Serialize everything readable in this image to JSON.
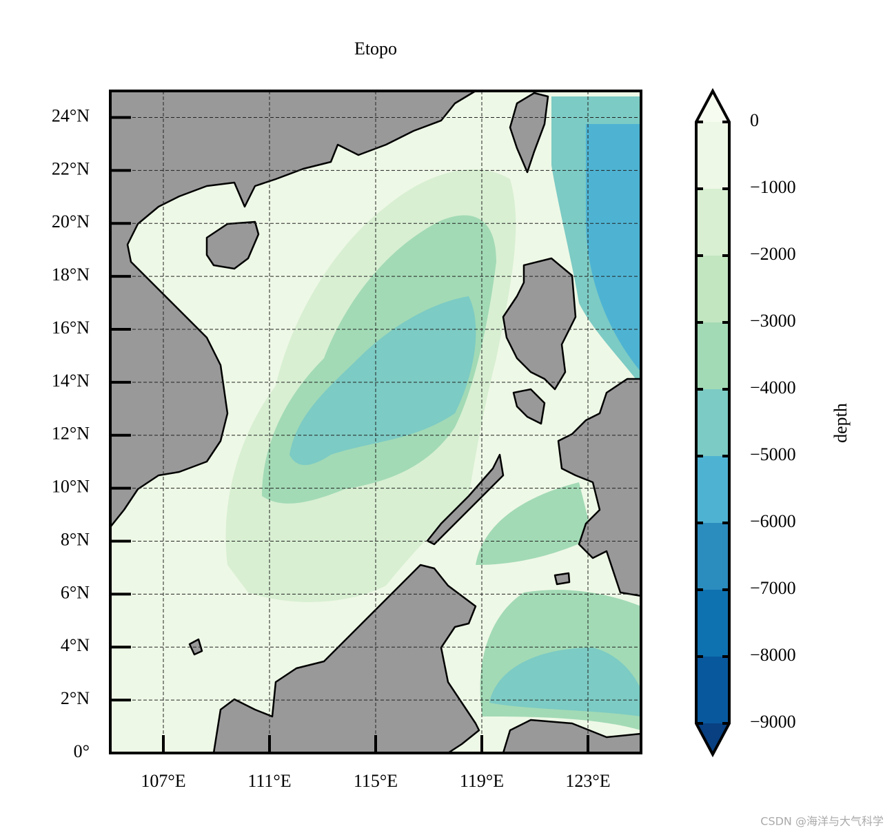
{
  "chart_data": {
    "type": "contourf-map",
    "title": "Etopo",
    "xlim": [
      105,
      125
    ],
    "ylim": [
      0,
      25
    ],
    "xticks": [
      {
        "value": 107,
        "label": "107°E"
      },
      {
        "value": 111,
        "label": "111°E"
      },
      {
        "value": 115,
        "label": "115°E"
      },
      {
        "value": 119,
        "label": "119°E"
      },
      {
        "value": 123,
        "label": "123°E"
      }
    ],
    "yticks": [
      {
        "value": 0,
        "label": "0°"
      },
      {
        "value": 2,
        "label": "2°N"
      },
      {
        "value": 4,
        "label": "4°N"
      },
      {
        "value": 6,
        "label": "6°N"
      },
      {
        "value": 8,
        "label": "8°N"
      },
      {
        "value": 10,
        "label": "10°N"
      },
      {
        "value": 12,
        "label": "12°N"
      },
      {
        "value": 14,
        "label": "14°N"
      },
      {
        "value": 16,
        "label": "16°N"
      },
      {
        "value": 18,
        "label": "18°N"
      },
      {
        "value": 20,
        "label": "20°N"
      },
      {
        "value": 22,
        "label": "22°N"
      },
      {
        "value": 24,
        "label": "24°N"
      }
    ],
    "grid": true,
    "colorbar": {
      "label": "depth",
      "lim": [
        -9000,
        0
      ],
      "ticks": [
        0,
        {
          "value": -1000,
          "label": "−1000"
        },
        {
          "value": -2000,
          "label": "−2000"
        },
        {
          "value": -3000,
          "label": "−3000"
        },
        {
          "value": -4000,
          "label": "−4000"
        },
        {
          "value": -5000,
          "label": "−5000"
        },
        {
          "value": -6000,
          "label": "−6000"
        },
        {
          "value": -7000,
          "label": "−7000"
        },
        {
          "value": -8000,
          "label": "−8000"
        },
        {
          "value": -9000,
          "label": "−9000"
        }
      ],
      "colors": [
        "#eef8e6",
        "#d8efd2",
        "#c2e6c0",
        "#a2dab5",
        "#7ccbc4",
        "#4eb3d3",
        "#2b8cbe",
        "#0f72b0",
        "#08589e"
      ],
      "extend_colors": [
        "#f7fcf0",
        "#084081"
      ]
    }
  },
  "watermark": "CSDN @海洋与大气科学"
}
